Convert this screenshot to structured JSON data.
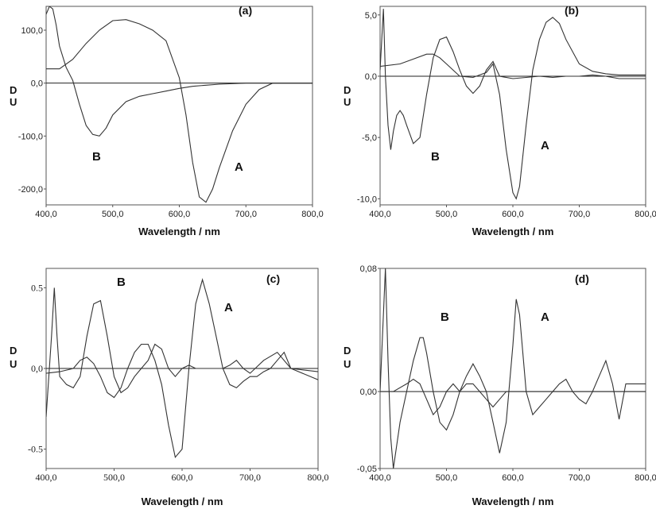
{
  "chart_data": [
    {
      "type": "line",
      "panel_label": "(a)",
      "xlabel": "Wavelength / nm",
      "ylabel": "D U",
      "xlim": [
        400,
        800
      ],
      "ylim": [
        -230,
        145
      ],
      "x_ticks": [
        "400,0",
        "500,0",
        "600,0",
        "700,0",
        "800,0"
      ],
      "x_tick_values": [
        400,
        500,
        600,
        700,
        800
      ],
      "y_ticks": [
        "100,0",
        "0,0",
        "-100,0",
        "-200,0"
      ],
      "y_tick_values": [
        100,
        0,
        -100,
        -200
      ],
      "series": [
        {
          "name": "A",
          "x": [
            400,
            420,
            440,
            460,
            480,
            500,
            520,
            540,
            560,
            580,
            600,
            610,
            620,
            630,
            640,
            650,
            660,
            680,
            700,
            720,
            740,
            760,
            800
          ],
          "y": [
            27,
            27,
            45,
            75,
            100,
            118,
            120,
            112,
            100,
            80,
            10,
            -60,
            -150,
            -215,
            -225,
            -200,
            -160,
            -90,
            -40,
            -12,
            0,
            0,
            0
          ]
        },
        {
          "name": "B",
          "x": [
            400,
            405,
            410,
            415,
            420,
            430,
            440,
            450,
            460,
            470,
            480,
            490,
            500,
            520,
            540,
            560,
            580,
            600,
            620,
            640,
            660,
            700,
            800
          ],
          "y": [
            130,
            145,
            140,
            110,
            70,
            30,
            5,
            -40,
            -80,
            -97,
            -100,
            -85,
            -60,
            -35,
            -25,
            -20,
            -15,
            -10,
            -6,
            -4,
            -2,
            0,
            0
          ]
        }
      ],
      "annotations": [
        "B",
        "A"
      ]
    },
    {
      "type": "line",
      "panel_label": "(b)",
      "xlabel": "Wavelength / nm",
      "ylabel": "D U",
      "xlim": [
        400,
        800
      ],
      "ylim": [
        -10.5,
        5.7
      ],
      "x_ticks": [
        "400,0",
        "500,0",
        "600,0",
        "700,0",
        "800,0"
      ],
      "x_tick_values": [
        400,
        500,
        600,
        700,
        800
      ],
      "y_ticks": [
        "5,0",
        "0,0",
        "-5,0",
        "-10,0"
      ],
      "y_tick_values": [
        5,
        0,
        -5,
        -10
      ],
      "series": [
        {
          "name": "A",
          "x": [
            400,
            430,
            450,
            470,
            480,
            490,
            500,
            520,
            540,
            560,
            570,
            580,
            590,
            600,
            605,
            610,
            620,
            630,
            640,
            650,
            660,
            670,
            680,
            700,
            720,
            740,
            760,
            800
          ],
          "y": [
            0.8,
            1.0,
            1.4,
            1.8,
            1.8,
            1.5,
            1.0,
            0.0,
            -0.1,
            0.3,
            1.0,
            -1.5,
            -6.0,
            -9.5,
            -10.0,
            -9.0,
            -4.0,
            0.5,
            3.0,
            4.4,
            4.8,
            4.3,
            3.0,
            1.0,
            0.4,
            0.2,
            0.1,
            0.1
          ]
        },
        {
          "name": "B",
          "x": [
            400,
            405,
            408,
            412,
            416,
            420,
            425,
            430,
            435,
            440,
            450,
            460,
            470,
            480,
            490,
            500,
            510,
            520,
            530,
            540,
            550,
            560,
            570,
            580,
            600,
            620,
            640,
            660,
            680,
            700,
            720,
            740,
            760,
            800
          ],
          "y": [
            0.5,
            5.5,
            0.0,
            -4.0,
            -6.0,
            -4.5,
            -3.2,
            -2.8,
            -3.2,
            -4.0,
            -5.5,
            -5.0,
            -1.5,
            1.5,
            3.0,
            3.2,
            2.0,
            0.5,
            -0.8,
            -1.4,
            -0.8,
            0.5,
            1.2,
            0.0,
            -0.2,
            -0.1,
            0.0,
            -0.1,
            0.0,
            0.0,
            0.1,
            0.0,
            -0.2,
            -0.2
          ]
        }
      ],
      "annotations": [
        "B",
        "A"
      ]
    },
    {
      "type": "line",
      "panel_label": "(c)",
      "xlabel": "Wavelength / nm",
      "ylabel": "D U",
      "xlim": [
        400,
        800
      ],
      "ylim": [
        -0.62,
        0.62
      ],
      "x_ticks": [
        "400,0",
        "500,0",
        "600,0",
        "700,0",
        "800,0"
      ],
      "x_tick_values": [
        400,
        500,
        600,
        700,
        800
      ],
      "y_ticks": [
        "0.5",
        "0,0",
        "-0.5"
      ],
      "y_tick_values": [
        0.5,
        0,
        -0.5
      ],
      "series": [
        {
          "name": "B",
          "x": [
            400,
            408,
            412,
            416,
            420,
            430,
            440,
            450,
            460,
            470,
            480,
            490,
            500,
            510,
            520,
            530,
            540,
            550,
            560,
            570,
            580,
            590,
            600,
            610,
            620,
            630,
            640,
            650,
            660,
            670,
            680,
            690,
            700,
            720,
            740,
            760,
            800
          ],
          "y": [
            -0.3,
            0.2,
            0.5,
            0.2,
            -0.05,
            -0.1,
            -0.12,
            -0.05,
            0.2,
            0.4,
            0.42,
            0.2,
            -0.05,
            -0.15,
            -0.12,
            -0.05,
            0.0,
            0.05,
            0.15,
            0.12,
            0.0,
            -0.05,
            0.0,
            0.02,
            0.0,
            0.0,
            0.0,
            0.0,
            0.0,
            0.02,
            0.05,
            0.0,
            -0.03,
            0.05,
            0.1,
            0.0,
            -0.02
          ]
        },
        {
          "name": "A",
          "x": [
            400,
            420,
            440,
            450,
            460,
            470,
            480,
            490,
            500,
            510,
            520,
            530,
            540,
            550,
            560,
            570,
            580,
            590,
            600,
            610,
            620,
            630,
            640,
            650,
            660,
            670,
            680,
            690,
            700,
            710,
            720,
            730,
            740,
            750,
            760,
            800
          ],
          "y": [
            -0.03,
            -0.02,
            0.0,
            0.05,
            0.07,
            0.03,
            -0.05,
            -0.15,
            -0.18,
            -0.12,
            0.0,
            0.1,
            0.15,
            0.15,
            0.05,
            -0.1,
            -0.35,
            -0.55,
            -0.5,
            0.0,
            0.4,
            0.55,
            0.4,
            0.2,
            0.0,
            -0.1,
            -0.12,
            -0.08,
            -0.05,
            -0.05,
            -0.02,
            0.0,
            0.05,
            0.1,
            0.0,
            -0.07
          ]
        }
      ],
      "annotations": [
        "B",
        "A"
      ]
    },
    {
      "type": "line",
      "panel_label": "(d)",
      "xlabel": "Wavelength / nm",
      "ylabel": "D U",
      "xlim": [
        400,
        800
      ],
      "ylim": [
        -0.05,
        0.08
      ],
      "x_ticks": [
        "400,0",
        "500,0",
        "600,0",
        "700,0",
        "800,0"
      ],
      "x_tick_values": [
        400,
        500,
        600,
        700,
        800
      ],
      "y_ticks": [
        "0,08",
        "0,00",
        "-0,05"
      ],
      "y_tick_values": [
        0.08,
        0.0,
        -0.05
      ],
      "series": [
        {
          "name": "B",
          "x": [
            400,
            408,
            412,
            416,
            420,
            430,
            440,
            450,
            460,
            465,
            470,
            480,
            490,
            500,
            510,
            520,
            530,
            540,
            550,
            560,
            570,
            580,
            590,
            600,
            620,
            640,
            660,
            680,
            700,
            720,
            740,
            760,
            800
          ],
          "y": [
            0.0,
            0.08,
            0.02,
            -0.03,
            -0.05,
            -0.02,
            0.0,
            0.02,
            0.035,
            0.035,
            0.025,
            0.0,
            -0.02,
            -0.025,
            -0.015,
            0.0,
            0.005,
            0.005,
            0.0,
            -0.005,
            -0.01,
            -0.005,
            0.0,
            0.0,
            0.0,
            0.0,
            0.0,
            0.0,
            0.0,
            0.0,
            0.0,
            0.0,
            0.0
          ]
        },
        {
          "name": "A",
          "x": [
            400,
            420,
            440,
            450,
            460,
            470,
            480,
            490,
            500,
            510,
            520,
            530,
            540,
            550,
            560,
            570,
            580,
            590,
            600,
            605,
            610,
            620,
            630,
            640,
            650,
            660,
            670,
            680,
            690,
            700,
            710,
            720,
            730,
            740,
            750,
            760,
            770,
            800
          ],
          "y": [
            0.0,
            0.0,
            0.005,
            0.008,
            0.005,
            -0.005,
            -0.015,
            -0.01,
            0.0,
            0.005,
            0.0,
            0.01,
            0.018,
            0.01,
            0.0,
            -0.02,
            -0.04,
            -0.02,
            0.03,
            0.06,
            0.05,
            0.0,
            -0.015,
            -0.01,
            -0.005,
            0.0,
            0.005,
            0.008,
            0.0,
            -0.005,
            -0.008,
            0.0,
            0.01,
            0.02,
            0.005,
            -0.018,
            0.005,
            0.005
          ]
        }
      ],
      "annotations": [
        "B",
        "A"
      ]
    }
  ]
}
